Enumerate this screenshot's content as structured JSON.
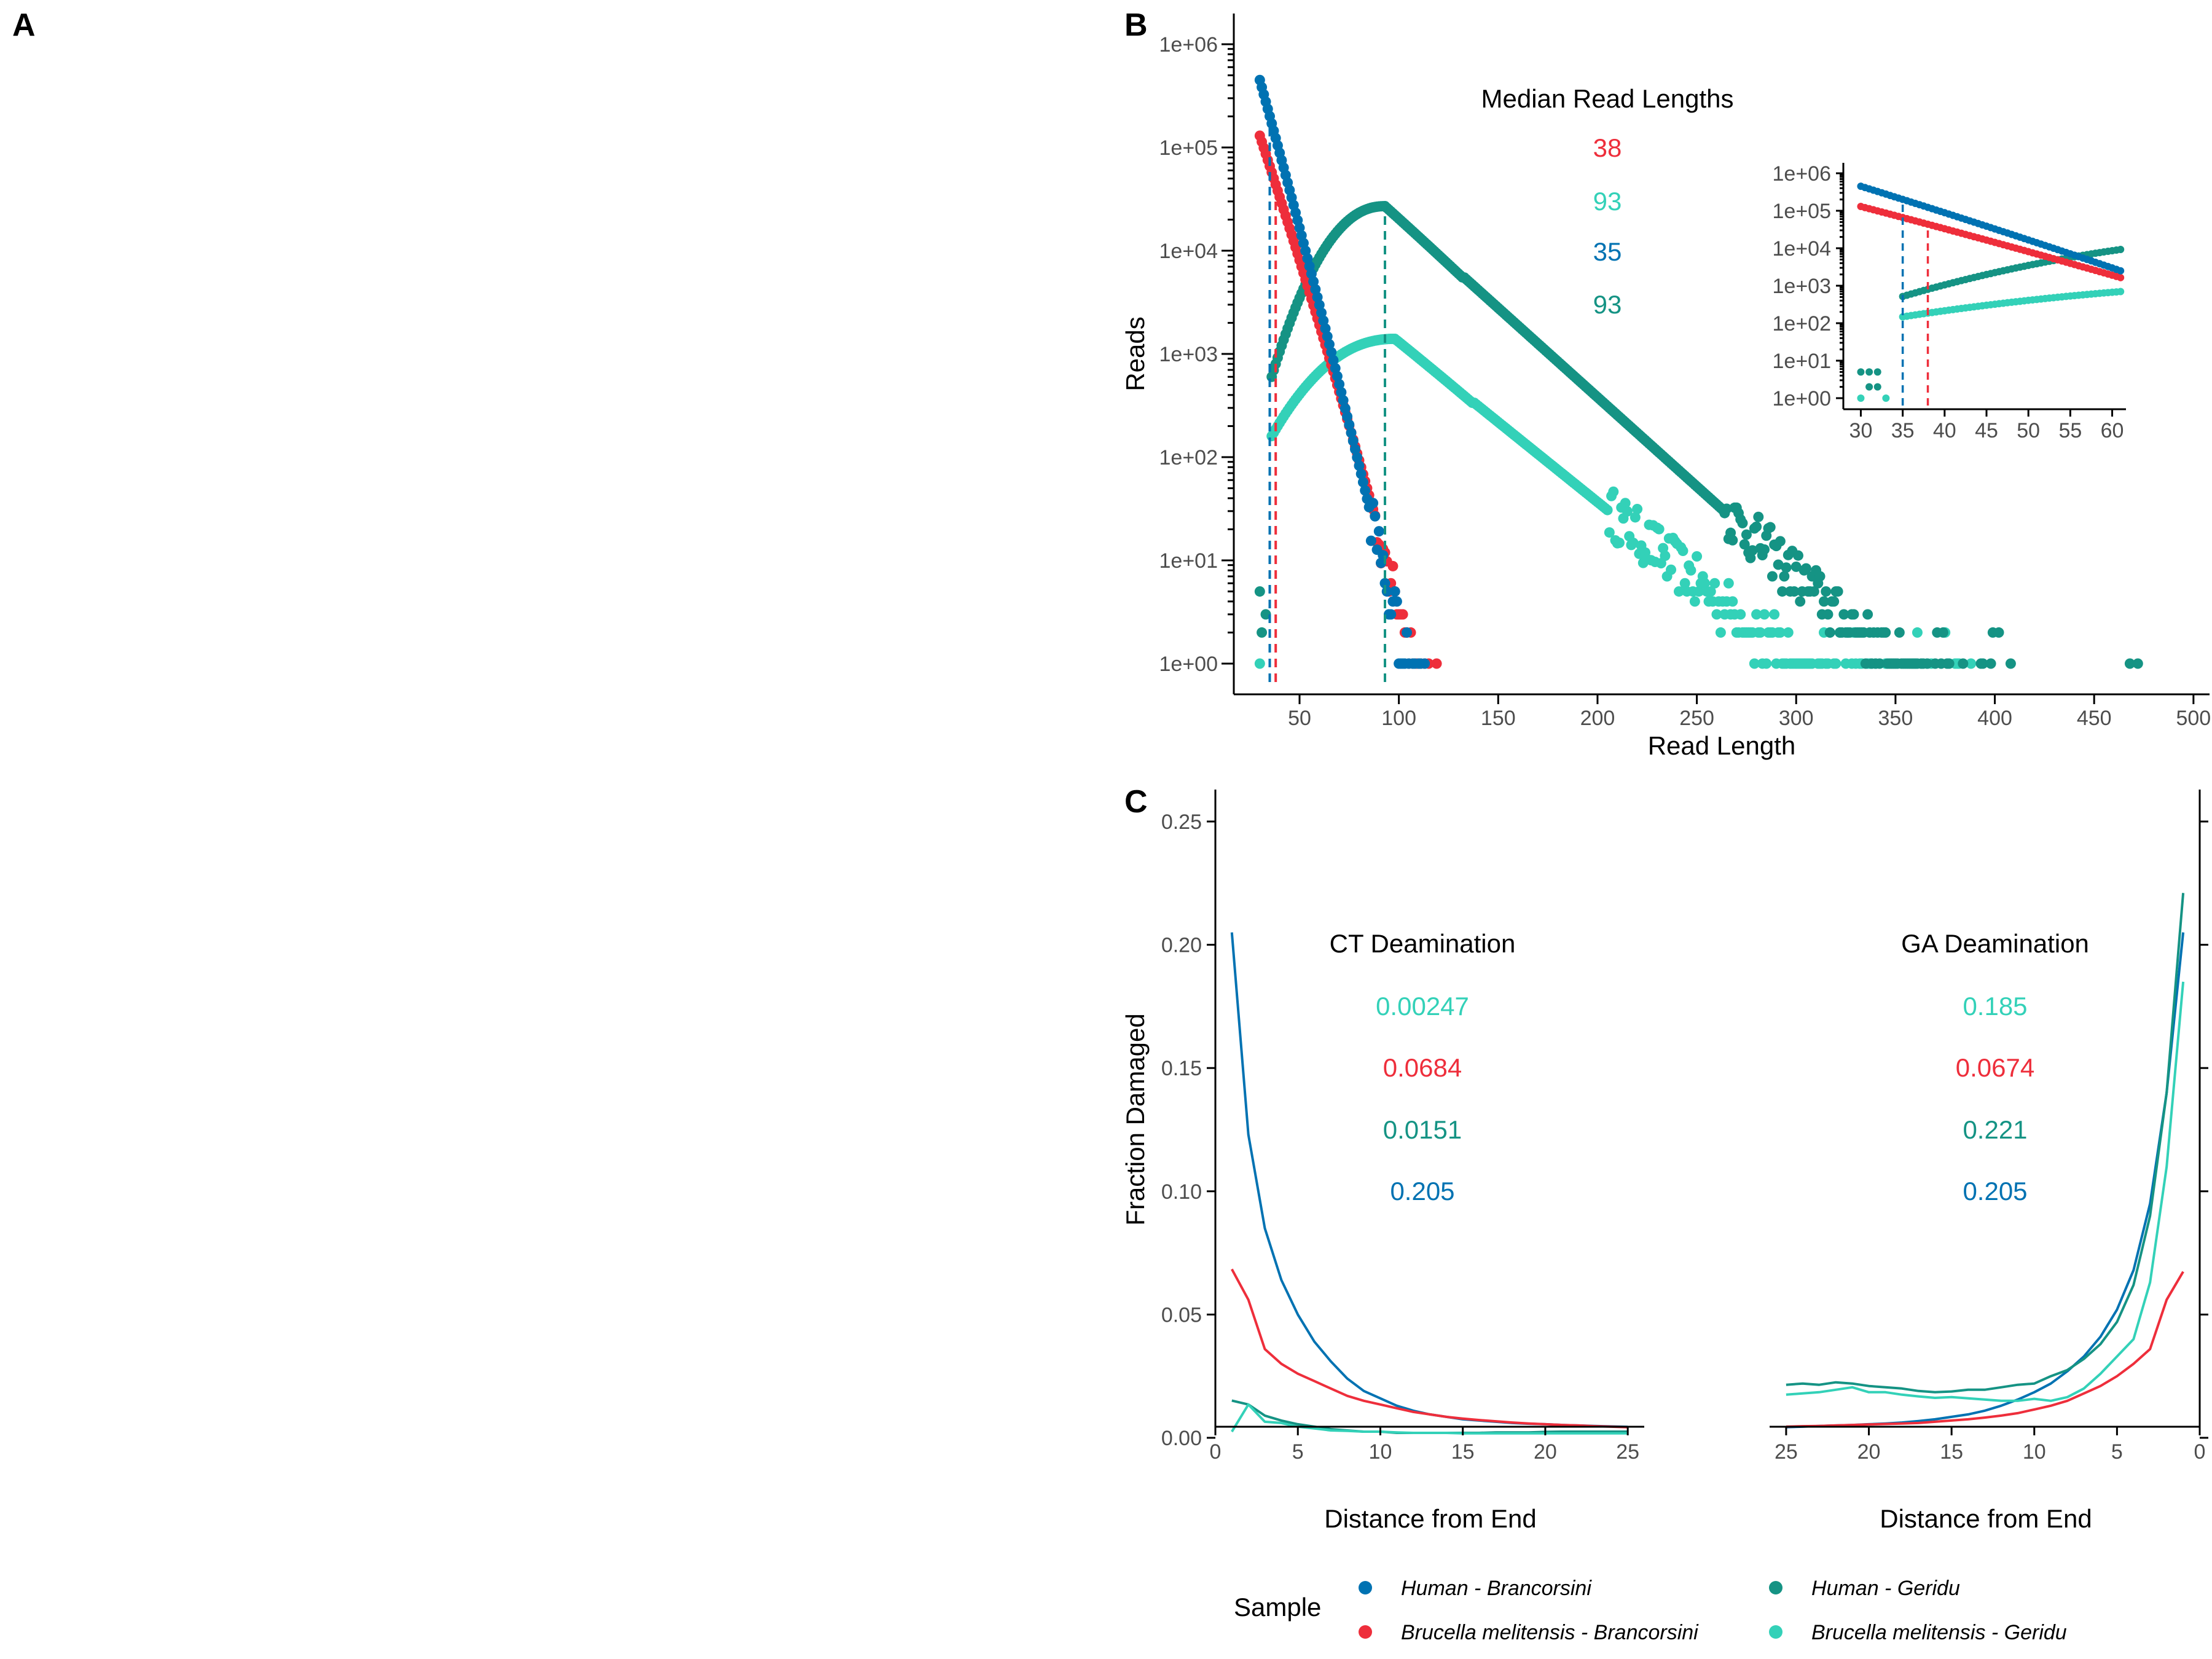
{
  "panels": {
    "a": "A",
    "b": "B",
    "c": "C"
  },
  "colors": {
    "human_brancorsini": "#0072B2",
    "brucella_brancorsini": "#EE2E3B",
    "human_geridu": "#159384",
    "brucella_geridu": "#33D1B8"
  },
  "chart_data": [
    {
      "type": "scatter",
      "panel": "B",
      "xlabel": "Read Length",
      "ylabel": "Reads",
      "log_y": true,
      "xlim": [
        20,
        505
      ],
      "ylim": [
        1,
        1000000
      ],
      "xticks": [
        "50",
        "100",
        "150",
        "200",
        "250",
        "300",
        "350",
        "400",
        "450",
        "500"
      ],
      "yticks": [
        "1e+00",
        "1e+01",
        "1e+02",
        "1e+03",
        "1e+04",
        "1e+05",
        "1e+06"
      ],
      "annotation_title": "Median Read Lengths",
      "medians": [
        {
          "series": "Brucella melitensis - Brancorsini",
          "value": "38"
        },
        {
          "series": "Brucella melitensis - Geridu",
          "value": "93"
        },
        {
          "series": "Human - Brancorsini",
          "value": "35"
        },
        {
          "series": "Human - Geridu",
          "value": "93"
        }
      ],
      "series": [
        {
          "name": "Human - Brancorsini",
          "peak_x": 30,
          "peak_y": 450000,
          "decay_per_bp": 0.0695,
          "end_x": 160,
          "median_line_x": 35
        },
        {
          "name": "Brucella melitensis - Brancorsini",
          "peak_x": 30,
          "peak_y": 130000,
          "decay_per_bp": 0.0585,
          "end_x": 170,
          "median_line_x": 38
        },
        {
          "name": "Human - Geridu",
          "start_x": 36,
          "start_y": 600,
          "peak_x": 93,
          "peak_y": 27000,
          "decay_per_bp": 0.0173,
          "end_x": 485,
          "median_line_x": 93
        },
        {
          "name": "Brucella melitensis - Geridu",
          "start_x": 36,
          "start_y": 160,
          "peak_x": 98,
          "peak_y": 1400,
          "decay_per_bp": 0.0155,
          "end_x": 390
        }
      ],
      "inset": {
        "xlim": [
          28.5,
          61.5
        ],
        "ylim": [
          1,
          1000000
        ],
        "xticks": [
          "30",
          "35",
          "40",
          "45",
          "50",
          "55",
          "60"
        ],
        "yticks": [
          "1e+00",
          "1e+01",
          "1e+02",
          "1e+03",
          "1e+04",
          "1e+05",
          "1e+06"
        ]
      }
    },
    {
      "type": "line",
      "panel": "C",
      "ylabel": "Fraction Damaged",
      "ylim": [
        0,
        0.25
      ],
      "yticks": [
        "0.00",
        "0.05",
        "0.10",
        "0.15",
        "0.20",
        "0.25"
      ],
      "left": {
        "title": "CT Deamination",
        "xlabel": "Distance from End",
        "xticks": [
          "0",
          "5",
          "10",
          "15",
          "20",
          "25"
        ],
        "values": [
          {
            "series": "Brucella melitensis - Geridu",
            "value": "0.00247"
          },
          {
            "series": "Brucella melitensis - Brancorsini",
            "value": "0.0684"
          },
          {
            "series": "Human - Geridu",
            "value": "0.0151"
          },
          {
            "series": "Human - Brancorsini",
            "value": "0.205"
          }
        ],
        "x": [
          1,
          2,
          3,
          4,
          5,
          6,
          7,
          8,
          9,
          10,
          11,
          12,
          13,
          14,
          15,
          16,
          17,
          18,
          19,
          20,
          21,
          22,
          23,
          24,
          25
        ],
        "series": [
          {
            "name": "Human - Brancorsini",
            "values": [
              0.205,
              0.123,
              0.085,
              0.064,
              0.05,
              0.039,
              0.031,
              0.024,
              0.019,
              0.016,
              0.013,
              0.011,
              0.0095,
              0.0085,
              0.0075,
              0.007,
              0.0065,
              0.006,
              0.0057,
              0.0055,
              0.0052,
              0.005,
              0.0048,
              0.0046,
              0.0044
            ]
          },
          {
            "name": "Brucella melitensis - Brancorsini",
            "values": [
              0.0684,
              0.056,
              0.036,
              0.03,
              0.026,
              0.023,
              0.02,
              0.017,
              0.015,
              0.0135,
              0.012,
              0.0105,
              0.0095,
              0.0085,
              0.0078,
              0.0072,
              0.0067,
              0.0062,
              0.0058,
              0.0055,
              0.0052,
              0.005,
              0.0047,
              0.0045,
              0.0043
            ]
          },
          {
            "name": "Human - Geridu",
            "values": [
              0.0151,
              0.0135,
              0.009,
              0.007,
              0.0055,
              0.0045,
              0.0035,
              0.003,
              0.0025,
              0.0025,
              0.002,
              0.002,
              0.002,
              0.002,
              0.002,
              0.002,
              0.0022,
              0.0022,
              0.0022,
              0.0024,
              0.0025,
              0.0025,
              0.0025,
              0.0025,
              0.0025
            ]
          },
          {
            "name": "Brucella melitensis - Geridu",
            "values": [
              0.00247,
              0.0135,
              0.0065,
              0.006,
              0.0045,
              0.0038,
              0.003,
              0.0028,
              0.0025,
              0.0025,
              0.0022,
              0.002,
              0.002,
              0.002,
              0.0018,
              0.0018,
              0.0018,
              0.0018,
              0.0018,
              0.0018,
              0.0018,
              0.0018,
              0.0018,
              0.0018,
              0.0018
            ]
          }
        ]
      },
      "right": {
        "title": "GA Deamination",
        "xlabel": "Distance from End",
        "xticks": [
          "25",
          "20",
          "15",
          "10",
          "5",
          "0"
        ],
        "values": [
          {
            "series": "Brucella melitensis - Geridu",
            "value": "0.185"
          },
          {
            "series": "Brucella melitensis - Brancorsini",
            "value": "0.0674"
          },
          {
            "series": "Human - Geridu",
            "value": "0.221"
          },
          {
            "series": "Human - Brancorsini",
            "value": "0.205"
          }
        ],
        "x": [
          25,
          24,
          23,
          22,
          21,
          20,
          19,
          18,
          17,
          16,
          15,
          14,
          13,
          12,
          11,
          10,
          9,
          8,
          7,
          6,
          5,
          4,
          3,
          2,
          1
        ],
        "series": [
          {
            "name": "Human - Brancorsini",
            "values": [
              0.0043,
              0.0045,
              0.0048,
              0.005,
              0.0052,
              0.0055,
              0.0058,
              0.0062,
              0.0068,
              0.0075,
              0.0085,
              0.0095,
              0.011,
              0.013,
              0.0155,
              0.0185,
              0.022,
              0.027,
              0.033,
              0.041,
              0.052,
              0.068,
              0.095,
              0.14,
              0.205
            ]
          },
          {
            "name": "Brucella melitensis - Brancorsini",
            "values": [
              0.0045,
              0.0047,
              0.0048,
              0.005,
              0.0052,
              0.0054,
              0.0056,
              0.0058,
              0.006,
              0.0065,
              0.007,
              0.0075,
              0.0082,
              0.009,
              0.01,
              0.0115,
              0.013,
              0.015,
              0.018,
              0.021,
              0.025,
              0.03,
              0.036,
              0.056,
              0.0674
            ]
          },
          {
            "name": "Human - Geridu",
            "values": [
              0.0215,
              0.022,
              0.0215,
              0.0225,
              0.022,
              0.021,
              0.0205,
              0.02,
              0.019,
              0.0185,
              0.0188,
              0.0195,
              0.0195,
              0.0205,
              0.0215,
              0.022,
              0.025,
              0.0275,
              0.032,
              0.038,
              0.047,
              0.062,
              0.09,
              0.14,
              0.221
            ]
          },
          {
            "name": "Brucella melitensis - Geridu",
            "values": [
              0.0175,
              0.018,
              0.0185,
              0.0195,
              0.0205,
              0.0185,
              0.0185,
              0.0175,
              0.0168,
              0.0162,
              0.0165,
              0.016,
              0.0155,
              0.015,
              0.015,
              0.0158,
              0.015,
              0.0165,
              0.02,
              0.026,
              0.033,
              0.04,
              0.063,
              0.11,
              0.185
            ]
          }
        ]
      }
    }
  ],
  "legend": {
    "title": "Sample",
    "items": [
      {
        "label": "Human - Brancorsini",
        "color": "#0072B2"
      },
      {
        "label": "Human - Geridu",
        "color": "#159384"
      },
      {
        "label": "Brucella melitensis - Brancorsini",
        "color": "#EE2E3B"
      },
      {
        "label": "Brucella melitensis - Geridu",
        "color": "#33D1B8"
      }
    ]
  }
}
